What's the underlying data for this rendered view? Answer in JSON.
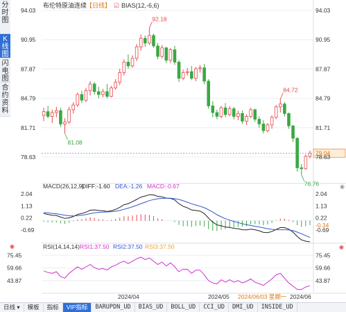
{
  "side_tabs": [
    "分时图",
    "K线图",
    "闪电图",
    "合约资料"
  ],
  "chart_title": "布伦特原油连续",
  "period_label": "日线",
  "bias_label": "BIAS(12,-6,6)",
  "colors": {
    "up": "#e8474b",
    "down": "#3aa843",
    "macd_dif": "#222222",
    "macd_dea": "#3355cc",
    "rsi1": "#cc33cc",
    "rsi2": "#3355cc",
    "rsi3": "#e8a33a",
    "accent": "#2f6fd6",
    "last_price_bg": "#fdecd7",
    "last_price_fg": "#e07a1a"
  },
  "main_axis": {
    "ticks": [
      "94.03",
      "90.95",
      "87.87",
      "84.79",
      "81.71",
      "78.63"
    ]
  },
  "price_annotations": {
    "high": "92.18",
    "low_left": "81.08",
    "local_high": "84.72",
    "low_right": "76.76",
    "last": "79.04"
  },
  "macd": {
    "header": "MACD(26,12,9)",
    "dif": "DIFF:-1.60",
    "dea": "DEA:-1.26",
    "macd": "MACD:-0.67",
    "ticks": [
      "2.04",
      "1.13",
      "0.22",
      "-0.69"
    ],
    "last": "-0.34"
  },
  "rsi": {
    "header": "RSI(14,14,14)",
    "rsi1": "RSI1:37.50",
    "rsi2": "RSI2:37.50",
    "rsi3": "RSI3:37.50",
    "ticks": [
      "75.45",
      "59.66",
      "43.87"
    ]
  },
  "x_axis": {
    "labels": [
      "2024/04",
      "2024/05"
    ],
    "cursor_label": "2024/06/03 星期一",
    "right_label": "2024/06"
  },
  "bottom_tabs": [
    "日线",
    "模板",
    "指标",
    "VIP指标",
    "BARUPDN_UD",
    "BIAS_UD",
    "BOLL_UD",
    "CCI_UD",
    "DMI_UD",
    "INSIDE_UD"
  ],
  "chart_data": {
    "type": "candlestick",
    "title": "布伦特原油连续",
    "ylim": [
      76.0,
      94.03
    ],
    "ohlc": [
      [
        83.0,
        83.8,
        82.4,
        83.4
      ],
      [
        83.4,
        84.0,
        82.7,
        82.9
      ],
      [
        82.9,
        83.6,
        82.2,
        83.3
      ],
      [
        83.3,
        83.9,
        82.8,
        83.5
      ],
      [
        83.5,
        83.8,
        81.8,
        82.1
      ],
      [
        82.1,
        82.7,
        81.1,
        82.3
      ],
      [
        82.3,
        83.9,
        82.1,
        83.6
      ],
      [
        83.6,
        84.4,
        83.2,
        84.1
      ],
      [
        84.1,
        85.4,
        83.9,
        85.2
      ],
      [
        85.2,
        85.6,
        84.3,
        84.6
      ],
      [
        84.6,
        85.9,
        84.4,
        85.6
      ],
      [
        85.6,
        86.6,
        85.1,
        86.3
      ],
      [
        86.3,
        86.5,
        85.2,
        85.5
      ],
      [
        85.5,
        86.0,
        84.8,
        85.2
      ],
      [
        85.2,
        85.8,
        84.9,
        85.5
      ],
      [
        85.5,
        86.3,
        84.8,
        85.0
      ],
      [
        85.0,
        86.1,
        84.9,
        85.9
      ],
      [
        85.9,
        86.8,
        85.7,
        86.5
      ],
      [
        86.5,
        87.9,
        86.2,
        87.5
      ],
      [
        87.5,
        88.9,
        87.2,
        88.6
      ],
      [
        88.6,
        89.4,
        87.9,
        88.2
      ],
      [
        88.2,
        89.3,
        88.0,
        89.0
      ],
      [
        89.0,
        90.5,
        88.7,
        90.2
      ],
      [
        90.2,
        91.5,
        89.8,
        91.1
      ],
      [
        91.1,
        91.4,
        90.2,
        90.6
      ],
      [
        90.6,
        92.18,
        90.4,
        91.4
      ],
      [
        91.4,
        91.6,
        90.1,
        90.3
      ],
      [
        90.3,
        90.6,
        88.9,
        89.2
      ],
      [
        89.2,
        90.4,
        89.0,
        90.1
      ],
      [
        90.1,
        90.2,
        88.5,
        88.8
      ],
      [
        88.8,
        90.1,
        88.5,
        89.9
      ],
      [
        89.9,
        90.3,
        88.3,
        88.6
      ],
      [
        88.6,
        88.8,
        86.5,
        86.9
      ],
      [
        86.9,
        87.8,
        86.7,
        87.5
      ],
      [
        87.5,
        88.0,
        87.2,
        87.6
      ],
      [
        87.6,
        88.2,
        86.7,
        86.9
      ],
      [
        86.9,
        88.1,
        86.6,
        87.9
      ],
      [
        87.9,
        88.3,
        87.5,
        88.0
      ],
      [
        88.0,
        88.4,
        86.3,
        86.6
      ],
      [
        86.6,
        86.8,
        83.7,
        84.0
      ],
      [
        84.0,
        84.5,
        82.8,
        83.3
      ],
      [
        83.3,
        83.6,
        82.6,
        82.9
      ],
      [
        82.9,
        84.0,
        82.7,
        83.8
      ],
      [
        83.8,
        84.3,
        82.8,
        83.1
      ],
      [
        83.1,
        84.0,
        82.9,
        83.7
      ],
      [
        83.7,
        83.9,
        82.6,
        82.9
      ],
      [
        82.9,
        83.5,
        82.5,
        83.2
      ],
      [
        83.2,
        83.5,
        82.1,
        82.4
      ],
      [
        82.4,
        83.1,
        82.0,
        82.9
      ],
      [
        82.9,
        83.8,
        82.7,
        83.6
      ],
      [
        83.6,
        83.7,
        82.3,
        82.6
      ],
      [
        82.6,
        82.9,
        81.7,
        82.1
      ],
      [
        82.1,
        82.5,
        81.1,
        81.4
      ],
      [
        81.4,
        82.2,
        81.2,
        82.0
      ],
      [
        82.0,
        83.0,
        81.6,
        82.8
      ],
      [
        82.8,
        84.1,
        82.6,
        83.9
      ],
      [
        83.9,
        84.72,
        83.3,
        84.2
      ],
      [
        84.2,
        84.4,
        82.9,
        83.2
      ],
      [
        83.2,
        83.3,
        81.6,
        81.9
      ],
      [
        81.9,
        82.0,
        80.2,
        80.6
      ],
      [
        80.6,
        80.7,
        77.1,
        77.5
      ],
      [
        77.5,
        77.9,
        76.76,
        77.4
      ],
      [
        77.4,
        78.9,
        77.3,
        78.7
      ],
      [
        78.7,
        79.3,
        78.5,
        79.04
      ]
    ],
    "macd": {
      "dif": [
        0.55,
        0.48,
        0.42,
        0.4,
        0.28,
        0.18,
        0.22,
        0.32,
        0.48,
        0.55,
        0.65,
        0.8,
        0.82,
        0.78,
        0.76,
        0.7,
        0.76,
        0.86,
        1.02,
        1.22,
        1.3,
        1.45,
        1.62,
        1.8,
        1.88,
        1.98,
        1.96,
        1.85,
        1.82,
        1.72,
        1.7,
        1.58,
        1.3,
        1.1,
        0.98,
        0.82,
        0.78,
        0.74,
        0.55,
        0.2,
        -0.1,
        -0.32,
        -0.38,
        -0.48,
        -0.5,
        -0.58,
        -0.6,
        -0.68,
        -0.7,
        -0.64,
        -0.68,
        -0.76,
        -0.88,
        -0.9,
        -0.82,
        -0.66,
        -0.52,
        -0.52,
        -0.64,
        -0.86,
        -1.2,
        -1.45,
        -1.55,
        -1.6
      ],
      "dea": [
        0.62,
        0.6,
        0.56,
        0.53,
        0.48,
        0.42,
        0.38,
        0.37,
        0.39,
        0.42,
        0.47,
        0.54,
        0.6,
        0.64,
        0.66,
        0.67,
        0.69,
        0.72,
        0.78,
        0.87,
        0.96,
        1.06,
        1.17,
        1.3,
        1.41,
        1.53,
        1.61,
        1.67,
        1.7,
        1.71,
        1.71,
        1.68,
        1.62,
        1.52,
        1.41,
        1.29,
        1.19,
        1.1,
        0.99,
        0.84,
        0.66,
        0.46,
        0.3,
        0.16,
        0.05,
        -0.05,
        -0.14,
        -0.23,
        -0.3,
        -0.36,
        -0.42,
        -0.47,
        -0.54,
        -0.61,
        -0.65,
        -0.68,
        -0.68,
        -0.68,
        -0.7,
        -0.75,
        -0.86,
        -0.99,
        -1.13,
        -1.26
      ],
      "hist": [
        -0.07,
        -0.12,
        -0.14,
        -0.13,
        -0.2,
        -0.24,
        -0.16,
        -0.05,
        0.09,
        0.13,
        0.18,
        0.26,
        0.22,
        0.14,
        0.1,
        0.03,
        0.07,
        0.14,
        0.24,
        0.35,
        0.34,
        0.39,
        0.45,
        0.5,
        0.47,
        0.45,
        0.35,
        0.18,
        0.12,
        0.01,
        -0.01,
        -0.1,
        -0.32,
        -0.42,
        -0.43,
        -0.47,
        -0.41,
        -0.36,
        -0.44,
        -0.64,
        -0.76,
        -0.78,
        -0.68,
        -0.64,
        -0.55,
        -0.53,
        -0.46,
        -0.45,
        -0.4,
        -0.28,
        -0.26,
        -0.29,
        -0.34,
        -0.29,
        -0.17,
        0.02,
        0.16,
        0.16,
        0.06,
        -0.11,
        -0.34,
        -0.46,
        -0.42,
        -0.34
      ]
    },
    "macd_ylim": [
      -1.6,
      2.2
    ],
    "rsi": [
      56,
      54,
      53,
      55,
      49,
      47,
      53,
      57,
      61,
      58,
      61,
      64,
      60,
      58,
      59,
      57,
      61,
      63,
      66,
      68,
      65,
      68,
      71,
      73,
      70,
      72,
      68,
      64,
      67,
      62,
      66,
      61,
      55,
      58,
      58,
      53,
      57,
      57,
      51,
      44,
      41,
      40,
      45,
      42,
      45,
      42,
      44,
      41,
      43,
      46,
      42,
      40,
      38,
      42,
      46,
      51,
      53,
      47,
      41,
      37,
      33,
      33,
      36,
      37.5
    ],
    "rsi_ylim": [
      30,
      80
    ]
  }
}
